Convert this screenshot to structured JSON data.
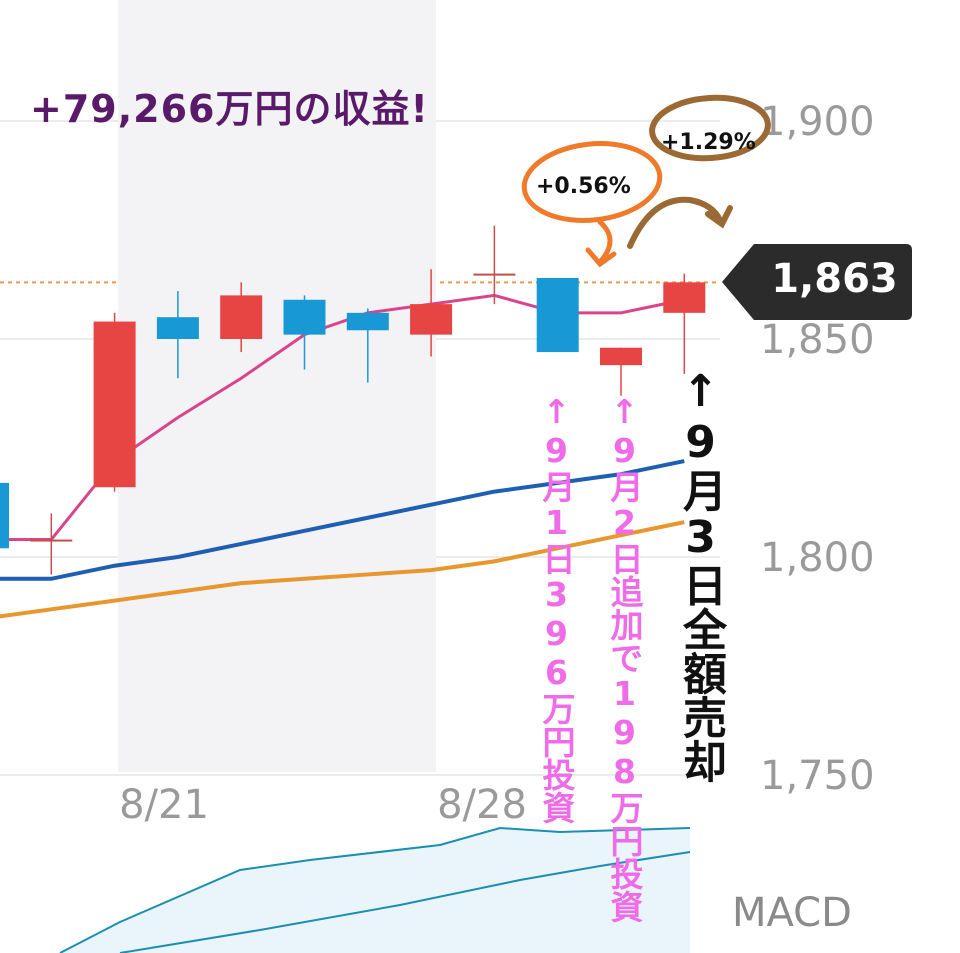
{
  "title": "+79,266万円の収益!",
  "current_price": "1,863",
  "annotations": {
    "pct1": "+0.56%",
    "pct2": "+1.29%",
    "note_sep1": "↑9月1日396万円投資",
    "note_sep2": "↑9月2日追加で198万円投資",
    "note_sep3": "↑9月3日全額売却"
  },
  "macd_label": "MACD",
  "colors": {
    "up": "#e74444",
    "down": "#1899d6",
    "ma_short": "#d9448b",
    "ma_mid": "#1e5fb4",
    "ma_long": "#e8962e",
    "title": "#5a1a6a",
    "annotation_pink": "#f06be8",
    "circle_orange": "#f07a2a",
    "circle_brown": "#9b6a34"
  },
  "chart_data": {
    "type": "candlestick",
    "y_ticks": [
      "1,900",
      "1,850",
      "1,800",
      "1,750"
    ],
    "y_tick_values": [
      1900,
      1850,
      1800,
      1750
    ],
    "x_ticks": [
      "8/21",
      "8/28"
    ],
    "ylim": [
      1735,
      1920
    ],
    "candles": [
      {
        "open": 1802,
        "close": 1817,
        "high": 1817,
        "low": 1800,
        "dir": "down"
      },
      {
        "open": 1804,
        "close": 1804,
        "high": 1810,
        "low": 1796,
        "dir": "flat"
      },
      {
        "open": 1816,
        "close": 1854,
        "high": 1856,
        "low": 1815,
        "dir": "up"
      },
      {
        "open": 1855,
        "close": 1850,
        "high": 1861,
        "low": 1841,
        "dir": "down"
      },
      {
        "open": 1850,
        "close": 1860,
        "high": 1863,
        "low": 1847,
        "dir": "up"
      },
      {
        "open": 1859,
        "close": 1851,
        "high": 1860,
        "low": 1843,
        "dir": "down"
      },
      {
        "open": 1856,
        "close": 1852,
        "high": 1857,
        "low": 1840,
        "dir": "down"
      },
      {
        "open": 1851,
        "close": 1858,
        "high": 1866,
        "low": 1846,
        "dir": "up"
      },
      {
        "open": 1865,
        "close": 1865,
        "high": 1876,
        "low": 1858,
        "dir": "flat"
      },
      {
        "open": 1864,
        "close": 1847,
        "high": 1864,
        "low": 1847,
        "dir": "down"
      },
      {
        "open": 1844,
        "close": 1848,
        "high": 1848,
        "low": 1837,
        "dir": "up"
      },
      {
        "open": 1856,
        "close": 1863,
        "high": 1865,
        "low": 1842,
        "dir": "up"
      }
    ],
    "ma_short": [
      1804,
      1804,
      1822,
      1832,
      1841,
      1851,
      1856,
      1858,
      1860,
      1856,
      1856,
      1859
    ],
    "ma_mid": [
      1795,
      1795,
      1798,
      1800,
      1803,
      1806,
      1809,
      1812,
      1815,
      1817,
      1819,
      1822
    ],
    "ma_long": [
      1786,
      1788,
      1790,
      1792,
      1794,
      1795,
      1796,
      1797,
      1799,
      1802,
      1805,
      1808
    ],
    "reference_line": 1863
  }
}
